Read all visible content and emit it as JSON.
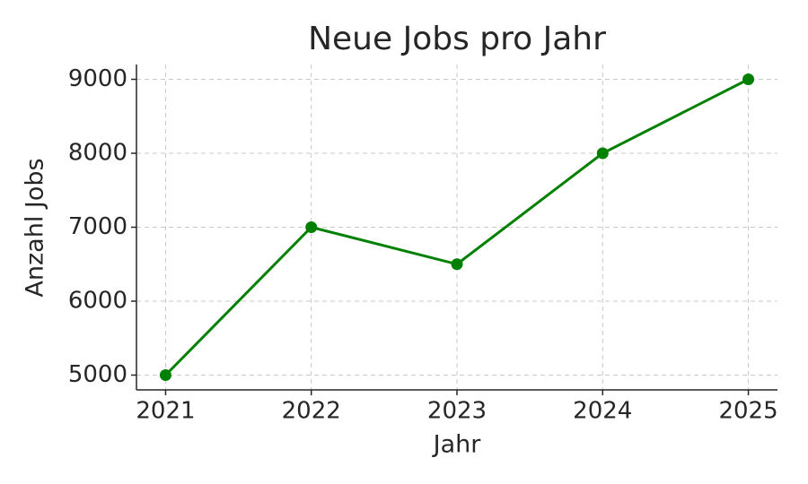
{
  "chart_data": {
    "type": "line",
    "title": "Neue Jobs pro Jahr",
    "x_label": "Jahr",
    "y_label": "Anzahl Jobs",
    "x": [
      2021,
      2022,
      2023,
      2024,
      2025
    ],
    "values": [
      5000,
      7000,
      6500,
      8000,
      9000
    ],
    "color": "#008000",
    "xlim": [
      2020.8,
      2025.2
    ],
    "xticks": [
      2021,
      2022,
      2023,
      2024,
      2025
    ],
    "ylim": [
      4800,
      9200
    ],
    "yticks": [
      5000,
      6000,
      7000,
      8000,
      9000
    ],
    "grid": true
  }
}
